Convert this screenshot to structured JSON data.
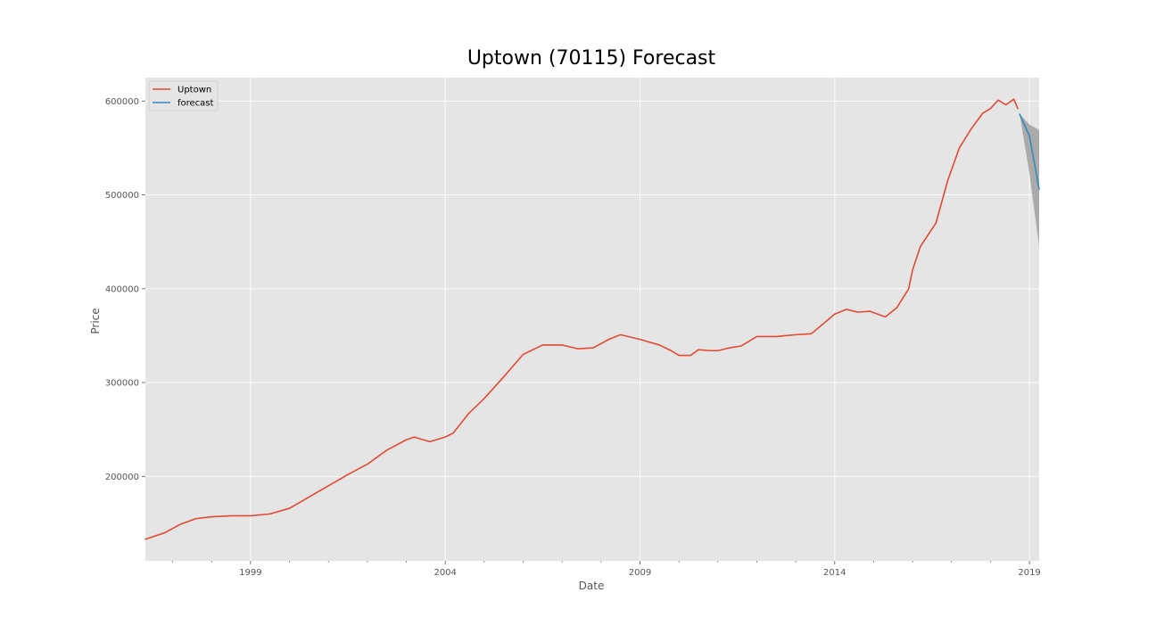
{
  "chart_data": {
    "type": "line",
    "title": "Uptown (70115) Forecast",
    "xlabel": "Date",
    "ylabel": "Price",
    "xlim": [
      1996.3,
      2019.25
    ],
    "ylim": [
      110000,
      625000
    ],
    "x_ticks": [
      1999,
      2004,
      2009,
      2014,
      2019
    ],
    "x_tick_labels": [
      "1999",
      "2004",
      "2009",
      "2014",
      "2019"
    ],
    "y_ticks": [
      200000,
      300000,
      400000,
      500000,
      600000
    ],
    "y_tick_labels": [
      "200000",
      "300000",
      "400000",
      "500000",
      "600000"
    ],
    "grid": true,
    "legend_position": "top-left",
    "colors": {
      "background": "#e5e5e5",
      "grid": "#ffffff",
      "Uptown": "#e24a33",
      "forecast": "#348abd",
      "confidence_band": "#a0a0a0"
    },
    "series": [
      {
        "name": "Uptown",
        "points": [
          [
            1996.3,
            133000
          ],
          [
            1996.8,
            140000
          ],
          [
            1997.2,
            149000
          ],
          [
            1997.6,
            155000
          ],
          [
            1998.0,
            157000
          ],
          [
            1998.5,
            158000
          ],
          [
            1999.0,
            158000
          ],
          [
            1999.5,
            160000
          ],
          [
            2000.0,
            166000
          ],
          [
            2000.5,
            178000
          ],
          [
            2001.0,
            190000
          ],
          [
            2001.5,
            202000
          ],
          [
            2002.0,
            213000
          ],
          [
            2002.5,
            228000
          ],
          [
            2003.0,
            239000
          ],
          [
            2003.2,
            242000
          ],
          [
            2003.6,
            237000
          ],
          [
            2004.0,
            242000
          ],
          [
            2004.2,
            246000
          ],
          [
            2004.6,
            267000
          ],
          [
            2005.0,
            283000
          ],
          [
            2005.5,
            306000
          ],
          [
            2006.0,
            330000
          ],
          [
            2006.5,
            340000
          ],
          [
            2007.0,
            340000
          ],
          [
            2007.4,
            336000
          ],
          [
            2007.8,
            337000
          ],
          [
            2008.2,
            346000
          ],
          [
            2008.5,
            351000
          ],
          [
            2008.8,
            348000
          ],
          [
            2009.0,
            346000
          ],
          [
            2009.5,
            340000
          ],
          [
            2009.8,
            334000
          ],
          [
            2010.0,
            329000
          ],
          [
            2010.3,
            329000
          ],
          [
            2010.5,
            335000
          ],
          [
            2010.8,
            334000
          ],
          [
            2011.0,
            334000
          ],
          [
            2011.3,
            337000
          ],
          [
            2011.6,
            339000
          ],
          [
            2012.0,
            349000
          ],
          [
            2012.5,
            349000
          ],
          [
            2013.0,
            351000
          ],
          [
            2013.4,
            352000
          ],
          [
            2013.8,
            366000
          ],
          [
            2014.0,
            373000
          ],
          [
            2014.3,
            378000
          ],
          [
            2014.6,
            375000
          ],
          [
            2014.9,
            376000
          ],
          [
            2015.1,
            373000
          ],
          [
            2015.3,
            370000
          ],
          [
            2015.6,
            380000
          ],
          [
            2015.9,
            400000
          ],
          [
            2016.0,
            420000
          ],
          [
            2016.2,
            445000
          ],
          [
            2016.6,
            470000
          ],
          [
            2016.9,
            515000
          ],
          [
            2017.2,
            550000
          ],
          [
            2017.5,
            570000
          ],
          [
            2017.8,
            587000
          ],
          [
            2018.0,
            592000
          ],
          [
            2018.2,
            601000
          ],
          [
            2018.4,
            596000
          ],
          [
            2018.6,
            602000
          ],
          [
            2018.7,
            592000
          ]
        ]
      },
      {
        "name": "forecast",
        "points": [
          [
            2018.75,
            586000
          ],
          [
            2019.0,
            563000
          ],
          [
            2019.25,
            506000
          ]
        ],
        "lower": [
          [
            2018.75,
            586000
          ],
          [
            2019.0,
            523000
          ],
          [
            2019.25,
            445000
          ]
        ],
        "upper": [
          [
            2018.75,
            586000
          ],
          [
            2019.0,
            575000
          ],
          [
            2019.25,
            569000
          ]
        ]
      }
    ]
  }
}
